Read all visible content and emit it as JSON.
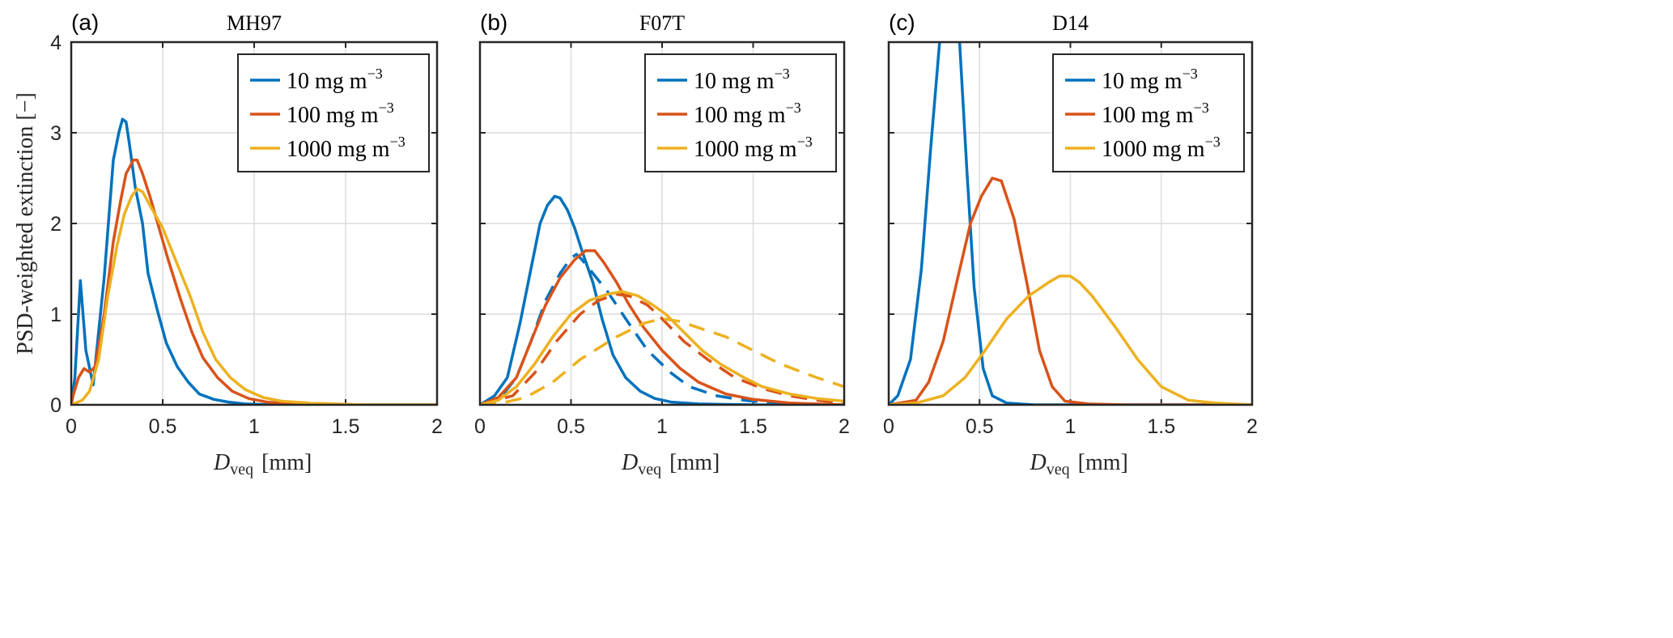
{
  "chart_data": [
    {
      "type": "line",
      "panel_label": "(a)",
      "title": "MH97",
      "xlabel": "D_veq [mm]",
      "xlabel_main": "D",
      "xlabel_sub": "veq",
      "xlabel_unit": "[mm]",
      "ylabel": "PSD-weighted extinction [−]",
      "xlim": [
        0,
        2
      ],
      "ylim": [
        0,
        4
      ],
      "xticks": [
        "0",
        "0.5",
        "1",
        "1.5",
        "2"
      ],
      "yticks": [
        "0",
        "1",
        "2",
        "3",
        "4"
      ],
      "grid": true,
      "legend_position": "top-right",
      "series": [
        {
          "name": "10 mg m^-3",
          "label_main": "10 mg m",
          "label_sup": "−3",
          "color": "#0072BD",
          "dashed": false,
          "x": [
            0,
            0.02,
            0.05,
            0.08,
            0.12,
            0.18,
            0.23,
            0.26,
            0.28,
            0.3,
            0.32,
            0.35,
            0.39,
            0.42,
            0.47,
            0.52,
            0.58,
            0.64,
            0.7,
            0.78,
            0.86,
            0.95,
            1.1,
            1.3,
            2
          ],
          "y": [
            0,
            0.3,
            1.37,
            0.6,
            0.22,
            1.4,
            2.7,
            3.0,
            3.15,
            3.12,
            2.85,
            2.4,
            2.0,
            1.45,
            1.05,
            0.68,
            0.42,
            0.25,
            0.12,
            0.06,
            0.03,
            0.01,
            0,
            0,
            0
          ]
        },
        {
          "name": "100 mg m^-3",
          "label_main": "100 mg m",
          "label_sup": "−3",
          "color": "#D95319",
          "dashed": false,
          "x": [
            0,
            0.01,
            0.04,
            0.07,
            0.1,
            0.13,
            0.18,
            0.23,
            0.27,
            0.3,
            0.34,
            0.36,
            0.39,
            0.43,
            0.48,
            0.53,
            0.6,
            0.66,
            0.72,
            0.8,
            0.88,
            0.97,
            1.07,
            1.2,
            1.5,
            2
          ],
          "y": [
            0,
            0.1,
            0.3,
            0.4,
            0.36,
            0.42,
            1.0,
            1.8,
            2.25,
            2.55,
            2.7,
            2.7,
            2.55,
            2.3,
            1.95,
            1.6,
            1.15,
            0.8,
            0.52,
            0.3,
            0.15,
            0.07,
            0.03,
            0.01,
            0,
            0
          ]
        },
        {
          "name": "1000 mg m^-3",
          "label_main": "1000 mg m",
          "label_sup": "−3",
          "color": "#EDB120",
          "dashed": false,
          "x": [
            0,
            0.06,
            0.1,
            0.15,
            0.2,
            0.25,
            0.29,
            0.33,
            0.36,
            0.39,
            0.43,
            0.5,
            0.57,
            0.65,
            0.72,
            0.79,
            0.87,
            0.95,
            1.05,
            1.15,
            1.3,
            1.6,
            2
          ],
          "y": [
            0,
            0.05,
            0.15,
            0.5,
            1.2,
            1.75,
            2.1,
            2.3,
            2.38,
            2.35,
            2.2,
            1.95,
            1.6,
            1.2,
            0.8,
            0.5,
            0.3,
            0.17,
            0.08,
            0.04,
            0.02,
            0,
            0
          ]
        }
      ]
    },
    {
      "type": "line",
      "panel_label": "(b)",
      "title": "F07T",
      "xlabel": "D_veq [mm]",
      "xlabel_main": "D",
      "xlabel_sub": "veq",
      "xlabel_unit": "[mm]",
      "xlim": [
        0,
        2
      ],
      "ylim": [
        0,
        4
      ],
      "xticks": [
        "0",
        "0.5",
        "1",
        "1.5",
        "2"
      ],
      "grid": true,
      "legend_position": "top-right",
      "series": [
        {
          "name": "10 mg m^-3",
          "label_main": "10 mg m",
          "label_sup": "−3",
          "color": "#0072BD",
          "dashed": false,
          "x": [
            0,
            0.08,
            0.15,
            0.22,
            0.28,
            0.33,
            0.37,
            0.41,
            0.44,
            0.48,
            0.52,
            0.56,
            0.62,
            0.67,
            0.73,
            0.8,
            0.88,
            0.96,
            1.05,
            1.2,
            1.5,
            2
          ],
          "y": [
            0,
            0.1,
            0.3,
            0.9,
            1.5,
            2.0,
            2.2,
            2.3,
            2.28,
            2.15,
            1.95,
            1.7,
            1.35,
            0.95,
            0.55,
            0.3,
            0.15,
            0.07,
            0.03,
            0.01,
            0,
            0
          ]
        },
        {
          "name": "10 mg m^-3 (dashed)",
          "color": "#0072BD",
          "dashed": true,
          "x": [
            0,
            0.12,
            0.2,
            0.28,
            0.36,
            0.44,
            0.5,
            0.53,
            0.56,
            0.62,
            0.7,
            0.8,
            0.92,
            1.05,
            1.15,
            1.3,
            1.45,
            1.6,
            1.8,
            2
          ],
          "y": [
            0,
            0.1,
            0.3,
            0.7,
            1.15,
            1.45,
            1.62,
            1.66,
            1.6,
            1.45,
            1.25,
            0.95,
            0.6,
            0.35,
            0.2,
            0.1,
            0.05,
            0.02,
            0,
            0
          ]
        },
        {
          "name": "100 mg m^-3",
          "label_main": "100 mg m",
          "label_sup": "−3",
          "color": "#D95319",
          "dashed": false,
          "x": [
            0,
            0.1,
            0.2,
            0.28,
            0.36,
            0.44,
            0.52,
            0.58,
            0.63,
            0.68,
            0.75,
            0.82,
            0.9,
            1.0,
            1.1,
            1.2,
            1.35,
            1.5,
            1.7,
            2
          ],
          "y": [
            0,
            0.08,
            0.3,
            0.7,
            1.1,
            1.4,
            1.6,
            1.7,
            1.7,
            1.57,
            1.35,
            1.1,
            0.85,
            0.6,
            0.4,
            0.25,
            0.12,
            0.06,
            0.02,
            0
          ]
        },
        {
          "name": "100 mg m^-3 (dashed)",
          "color": "#D95319",
          "dashed": true,
          "x": [
            0,
            0.18,
            0.3,
            0.42,
            0.55,
            0.65,
            0.75,
            0.82,
            0.92,
            1.0,
            1.12,
            1.25,
            1.4,
            1.55,
            1.7,
            1.85,
            2
          ],
          "y": [
            0,
            0.1,
            0.35,
            0.7,
            1.0,
            1.15,
            1.22,
            1.2,
            1.1,
            0.95,
            0.7,
            0.5,
            0.3,
            0.18,
            0.1,
            0.05,
            0.02
          ]
        },
        {
          "name": "1000 mg m^-3",
          "label_main": "1000 mg m",
          "label_sup": "−3",
          "color": "#EDB120",
          "dashed": false,
          "x": [
            0,
            0.1,
            0.2,
            0.3,
            0.4,
            0.5,
            0.6,
            0.7,
            0.78,
            0.87,
            0.95,
            1.02,
            1.12,
            1.22,
            1.32,
            1.45,
            1.55,
            1.7,
            1.85,
            2
          ],
          "y": [
            0,
            0.05,
            0.2,
            0.45,
            0.75,
            1.0,
            1.15,
            1.22,
            1.25,
            1.2,
            1.1,
            1.0,
            0.8,
            0.6,
            0.45,
            0.3,
            0.2,
            0.12,
            0.07,
            0.04
          ]
        },
        {
          "name": "1000 mg m^-3 (dashed)",
          "color": "#EDB120",
          "dashed": true,
          "x": [
            0,
            0.1,
            0.25,
            0.4,
            0.55,
            0.75,
            0.9,
            1.0,
            1.1,
            1.2,
            1.35,
            1.5,
            1.65,
            1.85,
            2
          ],
          "y": [
            0,
            0.01,
            0.08,
            0.25,
            0.5,
            0.75,
            0.9,
            0.95,
            0.92,
            0.85,
            0.75,
            0.6,
            0.45,
            0.3,
            0.2
          ]
        }
      ]
    },
    {
      "type": "line",
      "panel_label": "(c)",
      "title": "D14",
      "xlabel": "D_veq [mm]",
      "xlabel_main": "D",
      "xlabel_sub": "veq",
      "xlabel_unit": "[mm]",
      "xlim": [
        0,
        2
      ],
      "ylim": [
        0,
        4
      ],
      "xticks": [
        "0",
        "0.5",
        "1",
        "1.5",
        "2"
      ],
      "grid": true,
      "legend_position": "top-right",
      "series": [
        {
          "name": "10 mg m^-3",
          "label_main": "10 mg m",
          "label_sup": "−3",
          "color": "#0072BD",
          "dashed": false,
          "x": [
            0,
            0.05,
            0.12,
            0.18,
            0.23,
            0.28,
            0.31,
            0.36,
            0.39,
            0.43,
            0.47,
            0.52,
            0.57,
            0.65,
            0.8,
            2
          ],
          "y": [
            0,
            0.1,
            0.5,
            1.5,
            2.8,
            4.0,
            4.3,
            4.3,
            4.0,
            2.6,
            1.3,
            0.4,
            0.1,
            0.02,
            0,
            0
          ]
        },
        {
          "name": "100 mg m^-3",
          "label_main": "100 mg m",
          "label_sup": "−3",
          "color": "#D95319",
          "dashed": false,
          "x": [
            0,
            0.15,
            0.22,
            0.3,
            0.38,
            0.45,
            0.51,
            0.57,
            0.62,
            0.69,
            0.76,
            0.83,
            0.9,
            0.97,
            1.1,
            1.3,
            2
          ],
          "y": [
            0,
            0.05,
            0.25,
            0.7,
            1.4,
            2.0,
            2.3,
            2.5,
            2.47,
            2.05,
            1.35,
            0.6,
            0.2,
            0.04,
            0.01,
            0,
            0
          ]
        },
        {
          "name": "1000 mg m^-3",
          "label_main": "1000 mg m",
          "label_sup": "−3",
          "color": "#EDB120",
          "dashed": false,
          "x": [
            0,
            0.15,
            0.3,
            0.42,
            0.53,
            0.65,
            0.77,
            0.88,
            0.94,
            1.0,
            1.05,
            1.12,
            1.25,
            1.37,
            1.5,
            1.65,
            1.8,
            2
          ],
          "y": [
            0,
            0.02,
            0.1,
            0.3,
            0.6,
            0.95,
            1.2,
            1.35,
            1.42,
            1.42,
            1.35,
            1.2,
            0.85,
            0.5,
            0.2,
            0.05,
            0.02,
            0
          ]
        }
      ]
    }
  ]
}
